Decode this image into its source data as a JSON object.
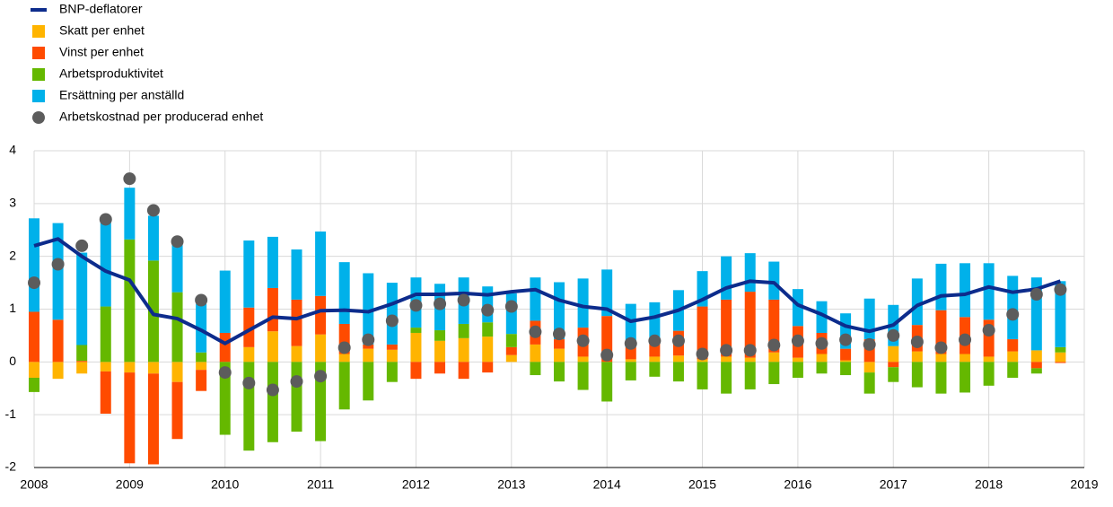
{
  "chart_data": {
    "type": "bar",
    "x": [
      2008,
      2008.25,
      2008.5,
      2008.75,
      2009,
      2009.25,
      2009.5,
      2009.75,
      2010,
      2010.25,
      2010.5,
      2010.75,
      2011,
      2011.25,
      2011.5,
      2011.75,
      2012,
      2012.25,
      2012.5,
      2012.75,
      2013,
      2013.25,
      2013.5,
      2013.75,
      2014,
      2014.25,
      2014.5,
      2014.75,
      2015,
      2015.25,
      2015.5,
      2015.75,
      2016,
      2016.25,
      2016.5,
      2016.75,
      2017,
      2017.25,
      2017.5,
      2017.75,
      2018,
      2018.25,
      2018.5,
      2018.75
    ],
    "xlim": [
      2008,
      2019
    ],
    "xticks": [
      2008,
      2009,
      2010,
      2011,
      2012,
      2013,
      2014,
      2015,
      2016,
      2017,
      2018,
      2019
    ],
    "ylim": [
      -2,
      4
    ],
    "yticks": [
      -2,
      -1,
      0,
      1,
      2,
      3,
      4
    ],
    "grid": true,
    "legend": "top-left",
    "series": [
      {
        "name": "BNP-deflatorer",
        "type": "line",
        "color": "#0d2c8c",
        "values": [
          2.2,
          2.33,
          2.0,
          1.72,
          1.55,
          0.9,
          0.82,
          0.6,
          0.35,
          0.6,
          0.85,
          0.82,
          0.97,
          0.98,
          0.95,
          1.1,
          1.28,
          1.28,
          1.3,
          1.27,
          1.33,
          1.37,
          1.17,
          1.05,
          1.0,
          0.77,
          0.85,
          0.98,
          1.18,
          1.4,
          1.53,
          1.5,
          1.08,
          0.9,
          0.68,
          0.58,
          0.7,
          1.07,
          1.25,
          1.28,
          1.42,
          1.32,
          1.38,
          1.53
        ]
      },
      {
        "name": "Skatt per enhet",
        "type": "bar",
        "color": "#ffb400",
        "values": [
          -0.3,
          -0.32,
          -0.22,
          -0.18,
          -0.2,
          -0.22,
          -0.38,
          -0.15,
          0,
          0.28,
          0.58,
          0.3,
          0.52,
          0.15,
          0.25,
          0.23,
          0.55,
          0.4,
          0.45,
          0.48,
          0.13,
          0.33,
          0.25,
          0.1,
          0,
          0.05,
          0.1,
          0.12,
          0.05,
          0.1,
          0.08,
          0.18,
          0.08,
          0.15,
          0.03,
          -0.2,
          0.3,
          0.2,
          0.15,
          0.15,
          0.1,
          0.2,
          0.22,
          0.18
        ]
      },
      {
        "name": "Vinst per enhet",
        "type": "bar",
        "color": "#ff4b00",
        "values": [
          0.95,
          0.8,
          0.02,
          -0.8,
          -1.72,
          -1.72,
          -1.08,
          -0.4,
          0.55,
          0.75,
          0.82,
          0.88,
          0.73,
          0.57,
          0.08,
          0.1,
          -0.32,
          -0.22,
          -0.32,
          -0.2,
          0.15,
          0.45,
          0.18,
          0.55,
          0.87,
          0.23,
          0.3,
          0.47,
          1.0,
          1.08,
          1.25,
          1.0,
          0.6,
          0.4,
          0.22,
          0.43,
          -0.1,
          0.5,
          0.83,
          0.7,
          0.7,
          0.23,
          -0.12,
          -0.02
        ]
      },
      {
        "name": "Arbetsproduktivitet",
        "type": "bar",
        "color": "#65b800",
        "values": [
          -0.27,
          0,
          0.3,
          1.05,
          2.32,
          1.92,
          1.32,
          0.18,
          -1.38,
          -1.68,
          -1.52,
          -1.32,
          -1.5,
          -0.9,
          -0.73,
          -0.38,
          0.1,
          0.2,
          0.27,
          0.27,
          0.25,
          -0.25,
          -0.37,
          -0.53,
          -0.75,
          -0.35,
          -0.28,
          -0.37,
          -0.52,
          -0.6,
          -0.52,
          -0.42,
          -0.3,
          -0.22,
          -0.25,
          -0.4,
          -0.28,
          -0.48,
          -0.6,
          -0.58,
          -0.45,
          -0.3,
          -0.1,
          0.1
        ]
      },
      {
        "name": "Ersättning per anställd",
        "type": "bar",
        "color": "#00b1ea",
        "values": [
          1.77,
          1.83,
          1.75,
          1.6,
          0.98,
          0.85,
          0.95,
          0.92,
          1.18,
          1.27,
          0.97,
          0.95,
          1.22,
          1.17,
          1.35,
          1.17,
          0.95,
          0.88,
          0.88,
          0.68,
          0.77,
          0.82,
          1.08,
          0.93,
          0.88,
          0.82,
          0.73,
          0.77,
          0.67,
          0.82,
          0.73,
          0.72,
          0.7,
          0.6,
          0.67,
          0.77,
          0.78,
          0.88,
          0.88,
          1.02,
          1.07,
          1.2,
          1.38,
          1.25
        ]
      },
      {
        "name": "Arbetskostnad per producerad enhet",
        "type": "scatter",
        "color": "#5c5c5c",
        "values": [
          1.5,
          1.85,
          2.2,
          2.7,
          3.47,
          2.87,
          2.28,
          1.17,
          -0.2,
          -0.4,
          -0.53,
          -0.37,
          -0.27,
          0.27,
          0.42,
          0.78,
          1.07,
          1.1,
          1.17,
          0.98,
          1.05,
          0.57,
          0.53,
          0.4,
          0.13,
          0.35,
          0.4,
          0.4,
          0.15,
          0.22,
          0.22,
          0.32,
          0.4,
          0.35,
          0.42,
          0.33,
          0.5,
          0.38,
          0.27,
          0.42,
          0.6,
          0.9,
          1.28,
          1.37
        ]
      }
    ]
  }
}
